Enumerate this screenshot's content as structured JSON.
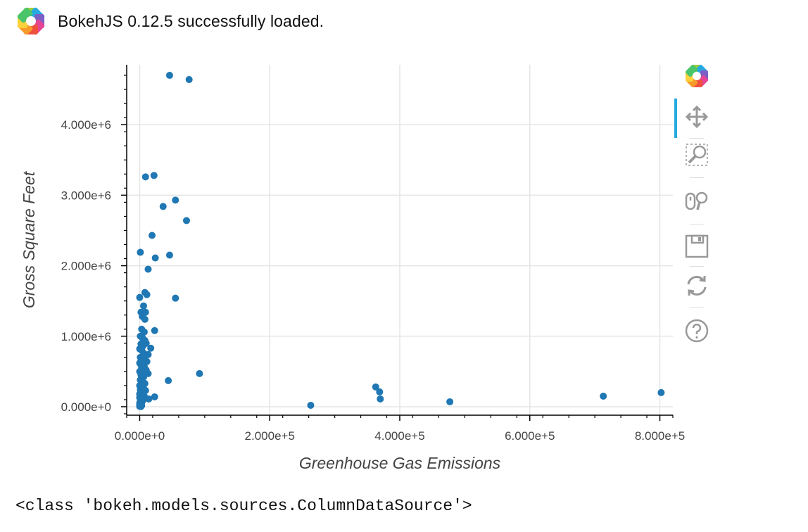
{
  "banner": {
    "text": "BokehJS 0.12.5 successfully loaded.",
    "logo_icon": "bokeh-logo-icon"
  },
  "toolbar": {
    "tools": [
      {
        "name": "bokeh-logo-icon",
        "active": false
      },
      {
        "name": "pan-icon",
        "active": true
      },
      {
        "name": "box-zoom-icon",
        "active": false
      },
      {
        "name": "wheel-zoom-icon",
        "active": false
      },
      {
        "name": "save-icon",
        "active": false
      },
      {
        "name": "reset-icon",
        "active": false
      },
      {
        "name": "help-icon",
        "active": false
      }
    ]
  },
  "output": {
    "text": "<class 'bokeh.models.sources.ColumnDataSource'>"
  },
  "colors": {
    "marker": "#1f77b4",
    "grid": "#e5e5e5",
    "axis": "#000000",
    "active_tool": "#26aae1"
  },
  "chart_data": {
    "type": "scatter",
    "xlabel": "Greenhouse Gas Emissions",
    "ylabel": "Gross Square Feet",
    "xlim": [
      -20000,
      820000
    ],
    "ylim": [
      -120000,
      4850000
    ],
    "x_ticks": [
      0,
      200000,
      400000,
      600000,
      800000
    ],
    "x_tick_labels": [
      "0.000e+0",
      "2.000e+5",
      "4.000e+5",
      "6.000e+5",
      "8.000e+5"
    ],
    "y_ticks": [
      0,
      1000000,
      2000000,
      3000000,
      4000000
    ],
    "y_tick_labels": [
      "0.000e+0",
      "1.000e+6",
      "2.000e+6",
      "3.000e+6",
      "4.000e+6"
    ],
    "grid": true,
    "marker_color": "#1f77b4",
    "points": [
      [
        46000,
        4700000
      ],
      [
        76000,
        4640000
      ],
      [
        9000,
        3260000
      ],
      [
        22000,
        3280000
      ],
      [
        55000,
        2930000
      ],
      [
        36000,
        2840000
      ],
      [
        72000,
        2640000
      ],
      [
        19000,
        2430000
      ],
      [
        1000,
        2190000
      ],
      [
        24000,
        2110000
      ],
      [
        46000,
        2150000
      ],
      [
        13000,
        1950000
      ],
      [
        8000,
        1620000
      ],
      [
        11000,
        1590000
      ],
      [
        0,
        1550000
      ],
      [
        55000,
        1540000
      ],
      [
        6000,
        1430000
      ],
      [
        2000,
        1340000
      ],
      [
        9000,
        1340000
      ],
      [
        4000,
        1280000
      ],
      [
        8000,
        1240000
      ],
      [
        23000,
        1080000
      ],
      [
        3000,
        1100000
      ],
      [
        7000,
        1060000
      ],
      [
        1000,
        1000000
      ],
      [
        4000,
        980000
      ],
      [
        8000,
        940000
      ],
      [
        2000,
        890000
      ],
      [
        5000,
        860000
      ],
      [
        10000,
        900000
      ],
      [
        0,
        820000
      ],
      [
        3000,
        800000
      ],
      [
        17000,
        830000
      ],
      [
        13000,
        740000
      ],
      [
        6000,
        760000
      ],
      [
        1000,
        700000
      ],
      [
        8000,
        680000
      ],
      [
        11000,
        640000
      ],
      [
        4000,
        640000
      ],
      [
        0,
        620000
      ],
      [
        2000,
        590000
      ],
      [
        7000,
        570000
      ],
      [
        3000,
        540000
      ],
      [
        10000,
        520000
      ],
      [
        13000,
        470000
      ],
      [
        0,
        500000
      ],
      [
        5000,
        480000
      ],
      [
        2000,
        450000
      ],
      [
        6000,
        420000
      ],
      [
        92000,
        470000
      ],
      [
        44000,
        370000
      ],
      [
        1000,
        380000
      ],
      [
        4000,
        350000
      ],
      [
        8000,
        330000
      ],
      [
        0,
        300000
      ],
      [
        3000,
        280000
      ],
      [
        6000,
        260000
      ],
      [
        1000,
        240000
      ],
      [
        9000,
        230000
      ],
      [
        2000,
        210000
      ],
      [
        5000,
        200000
      ],
      [
        0,
        180000
      ],
      [
        4000,
        160000
      ],
      [
        23000,
        140000
      ],
      [
        14000,
        110000
      ],
      [
        7000,
        150000
      ],
      [
        0,
        130000
      ],
      [
        2000,
        110000
      ],
      [
        5000,
        90000
      ],
      [
        1000,
        80000
      ],
      [
        3000,
        60000
      ],
      [
        0,
        50000
      ],
      [
        2000,
        40000
      ],
      [
        1000,
        30000
      ],
      [
        0,
        20000
      ],
      [
        3000,
        15000
      ],
      [
        1000,
        10000
      ],
      [
        0,
        5000
      ],
      [
        2000,
        2000
      ],
      [
        263000,
        20000
      ],
      [
        363000,
        280000
      ],
      [
        369000,
        210000
      ],
      [
        370000,
        110000
      ],
      [
        477000,
        70000
      ],
      [
        713000,
        150000
      ],
      [
        802000,
        200000
      ]
    ]
  }
}
